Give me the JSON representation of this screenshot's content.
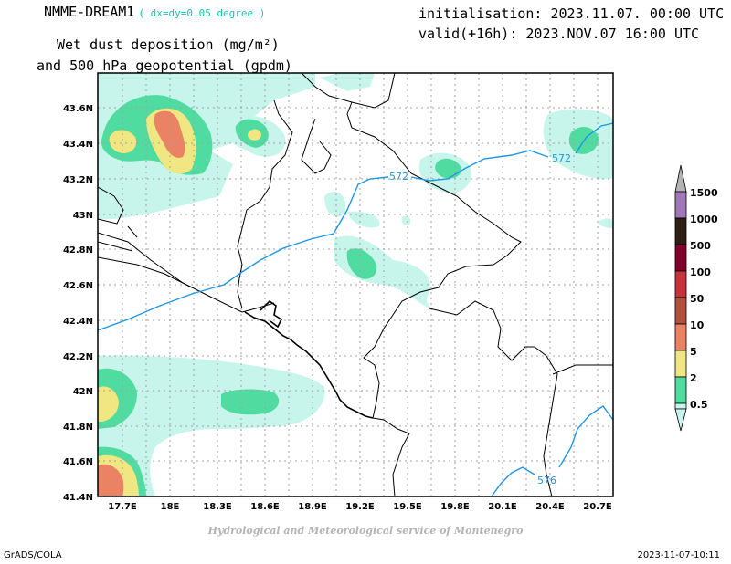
{
  "header": {
    "model": "NMME-DREAM1",
    "resolution": "( dx=dy=0.05 degree )",
    "product_line1": "Wet dust deposition (mg/m²)",
    "product_line2": "and 500 hPa geopotential (gpdm)",
    "init": "initialisation: 2023.11.07. 00:00 UTC",
    "valid": "valid(+16h): 2023.NOV.07 16:00 UTC"
  },
  "map": {
    "lat_labels": [
      "43.6N",
      "43.4N",
      "43.2N",
      "43N",
      "42.8N",
      "42.6N",
      "42.4N",
      "42.2N",
      "42N",
      "41.8N",
      "41.6N",
      "41.4N"
    ],
    "lon_labels": [
      "17.7E",
      "18E",
      "18.3E",
      "18.6E",
      "18.9E",
      "19.2E",
      "19.5E",
      "19.8E",
      "20.1E",
      "20.4E",
      "20.7E"
    ],
    "contour_labels": [
      "572",
      "572",
      "576"
    ],
    "contour_color": "#1e96e6"
  },
  "colorbar": {
    "levels": [
      "1500",
      "1000",
      "500",
      "100",
      "50",
      "10",
      "5",
      "2",
      "0.5"
    ],
    "colors": [
      "#a078b8",
      "#2e1e14",
      "#82002a",
      "#c8323c",
      "#b4503c",
      "#eb8264",
      "#f0e682",
      "#50dca0",
      "#c8f5eb"
    ]
  },
  "footer": {
    "credit": "Hydrological and Meteorological service of Montenegro",
    "left": "GrADS/COLA",
    "right": "2023-11-07-10:11"
  }
}
